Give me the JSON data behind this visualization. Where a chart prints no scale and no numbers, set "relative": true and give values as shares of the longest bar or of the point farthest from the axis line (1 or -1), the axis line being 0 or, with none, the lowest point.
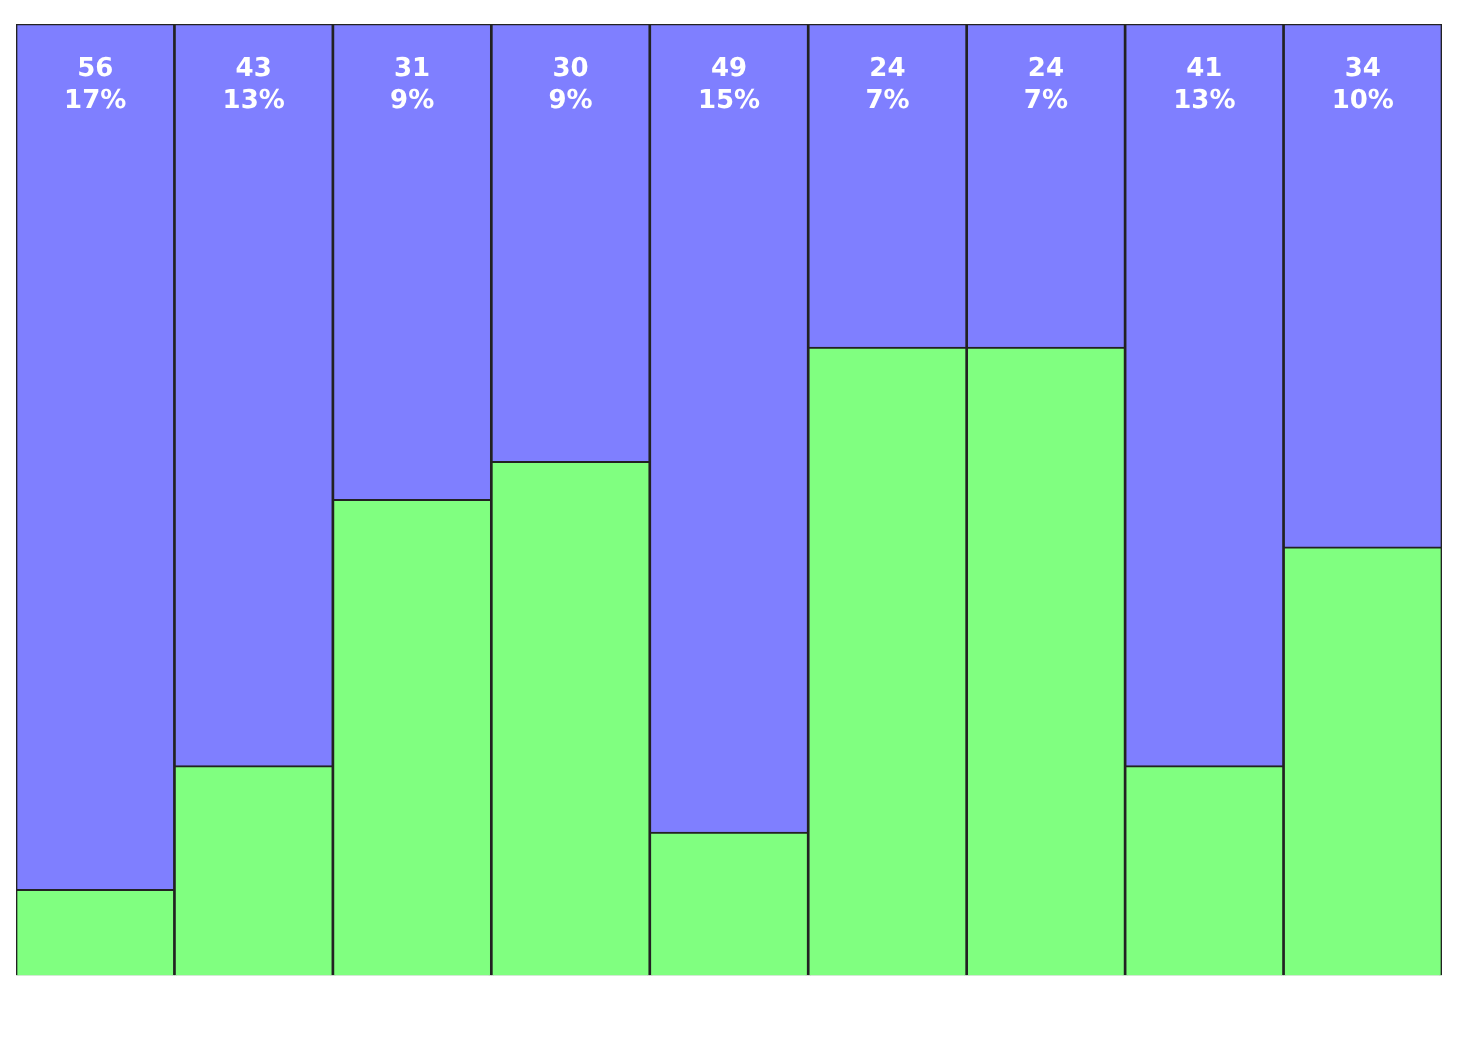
{
  "chart_data": {
    "type": "bar",
    "stacked": true,
    "relative": true,
    "categories": [
      null,
      null,
      null,
      null,
      null,
      null,
      null,
      null,
      null
    ],
    "series": [
      {
        "color": "#80ff80",
        "values": [
          0.09,
          0.22,
          0.5,
          0.54,
          0.15,
          0.66,
          0.66,
          0.22,
          0.45
        ]
      },
      {
        "color": "#7f7fff",
        "values": [
          0.91,
          0.78,
          0.5,
          0.46,
          0.85,
          0.34,
          0.34,
          0.78,
          0.55
        ]
      }
    ],
    "annotations": [
      "56\n17%",
      "43\n13%",
      "31\n9%",
      "30\n9%",
      "49\n15%",
      "24\n7%",
      "24\n7%",
      "41\n13%",
      "34\n10%"
    ]
  }
}
